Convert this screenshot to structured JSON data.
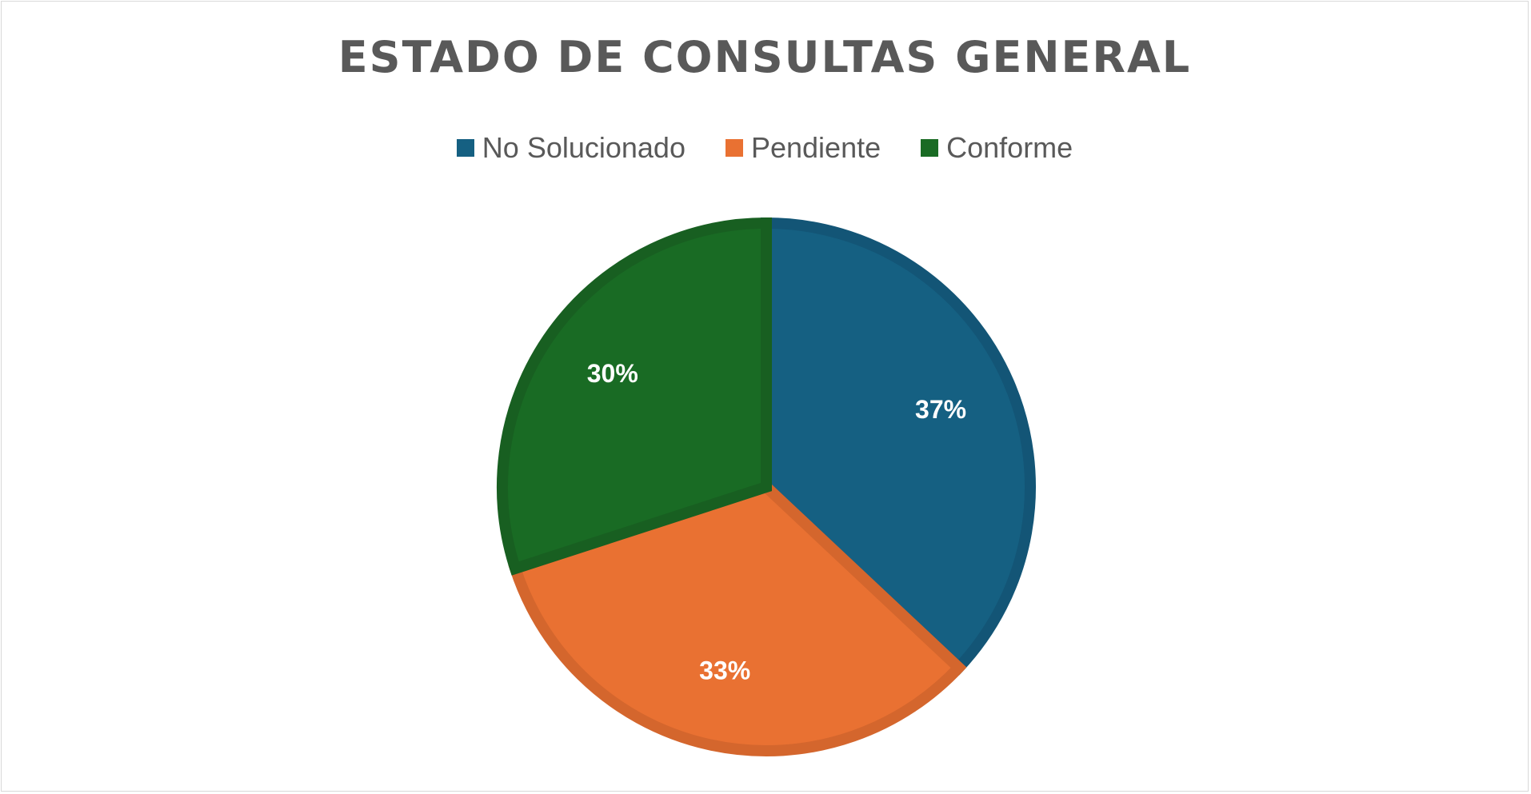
{
  "chart_data": {
    "type": "pie",
    "title": "ESTADO DE CONSULTAS GENERAL",
    "categories": [
      "No Solucionado",
      "Pendiente",
      "Conforme"
    ],
    "values": [
      37,
      33,
      30
    ],
    "labels": [
      "37%",
      "33%",
      "30%"
    ],
    "colors": [
      "#156082",
      "#E97132",
      "#196B24"
    ],
    "edge_colors": [
      "#135576",
      "#D4662D",
      "#185F21"
    ],
    "legend_position": "top"
  }
}
